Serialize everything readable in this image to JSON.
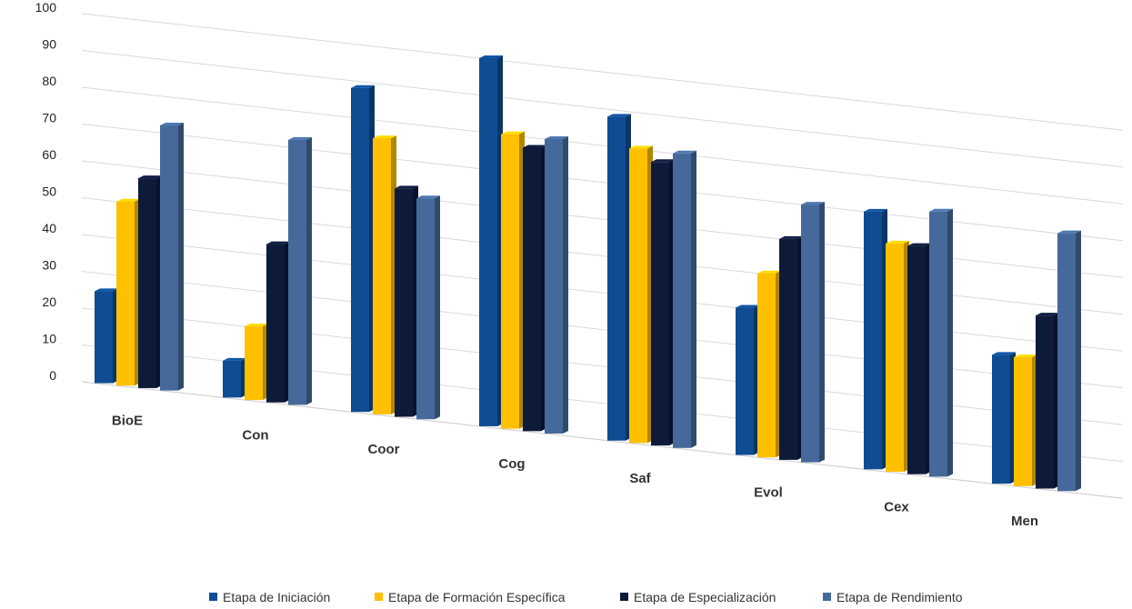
{
  "chart_data": {
    "type": "bar",
    "title": "",
    "xlabel": "",
    "ylabel": "",
    "ylim": [
      0,
      100
    ],
    "yticks": [
      0,
      10,
      20,
      30,
      40,
      50,
      60,
      70,
      80,
      90,
      100
    ],
    "categories": [
      "BioE",
      "Con",
      "Coor",
      "Cog",
      "Saf",
      "Evol",
      "Cex",
      "Men"
    ],
    "series": [
      {
        "name": "Etapa de Iniciación",
        "color": "#0f4c92",
        "values": [
          25,
          10,
          88,
          100,
          88,
          40,
          70,
          35
        ]
      },
      {
        "name": "Etapa de Formación Específica",
        "color": "#ffc000",
        "values": [
          50,
          20,
          75,
          80,
          80,
          50,
          62,
          35
        ]
      },
      {
        "name": "Etapa de Especialización",
        "color": "#0e1a3a",
        "values": [
          57,
          43,
          62,
          77,
          77,
          60,
          62,
          47
        ]
      },
      {
        "name": "Etapa de Rendimiento",
        "color": "#44699a",
        "values": [
          72,
          72,
          60,
          80,
          80,
          70,
          72,
          70
        ]
      }
    ],
    "legend_position": "bottom",
    "grid": true,
    "style": "3d-perspective"
  }
}
